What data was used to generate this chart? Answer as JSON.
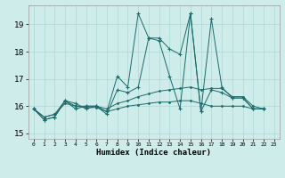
{
  "xlabel": "Humidex (Indice chaleur)",
  "xlim": [
    -0.5,
    23.5
  ],
  "ylim": [
    14.8,
    19.7
  ],
  "yticks": [
    15,
    16,
    17,
    18,
    19
  ],
  "xticks": [
    0,
    1,
    2,
    3,
    4,
    5,
    6,
    7,
    8,
    9,
    10,
    11,
    12,
    13,
    14,
    15,
    16,
    17,
    18,
    19,
    20,
    21,
    22,
    23
  ],
  "bg_color": "#ceecea",
  "grid_color": "#aed8d4",
  "line_color": "#1a6b6a",
  "series1_x": [
    0,
    1,
    2,
    3,
    4,
    5,
    6,
    7,
    8,
    9,
    10,
    11,
    12,
    13,
    14,
    15,
    16,
    17,
    18,
    19,
    20,
    21,
    22
  ],
  "series1_y": [
    15.9,
    15.5,
    15.6,
    16.2,
    16.1,
    15.9,
    16.0,
    15.8,
    17.1,
    16.7,
    19.4,
    18.5,
    18.5,
    18.1,
    17.9,
    19.4,
    15.8,
    19.2,
    16.7,
    16.3,
    16.3,
    15.9,
    15.9
  ],
  "series2_x": [
    0,
    1,
    2,
    3,
    4,
    5,
    6,
    7,
    8,
    9,
    10,
    11,
    12,
    13,
    14,
    15,
    16,
    17,
    18,
    19,
    20,
    21,
    22
  ],
  "series2_y": [
    15.9,
    15.5,
    15.6,
    16.2,
    15.9,
    16.0,
    16.0,
    15.7,
    16.6,
    16.5,
    16.7,
    18.5,
    18.4,
    17.1,
    15.9,
    19.4,
    15.8,
    16.6,
    16.5,
    16.3,
    16.3,
    15.9,
    15.9
  ],
  "series3_x": [
    0,
    1,
    2,
    3,
    4,
    5,
    6,
    7,
    8,
    9,
    10,
    11,
    12,
    13,
    14,
    15,
    16,
    17,
    18,
    19,
    20,
    21,
    22
  ],
  "series3_y": [
    15.9,
    15.6,
    15.7,
    16.2,
    16.0,
    16.0,
    16.0,
    15.9,
    16.1,
    16.2,
    16.35,
    16.45,
    16.55,
    16.6,
    16.65,
    16.7,
    16.6,
    16.65,
    16.65,
    16.35,
    16.35,
    16.0,
    15.9
  ],
  "series4_x": [
    0,
    1,
    2,
    3,
    4,
    5,
    6,
    7,
    8,
    9,
    10,
    11,
    12,
    13,
    14,
    15,
    16,
    17,
    18,
    19,
    20,
    21,
    22
  ],
  "series4_y": [
    15.9,
    15.6,
    15.7,
    16.1,
    16.0,
    15.95,
    15.95,
    15.8,
    15.9,
    16.0,
    16.05,
    16.1,
    16.15,
    16.15,
    16.2,
    16.2,
    16.1,
    16.0,
    16.0,
    16.0,
    16.0,
    15.9,
    15.9
  ]
}
